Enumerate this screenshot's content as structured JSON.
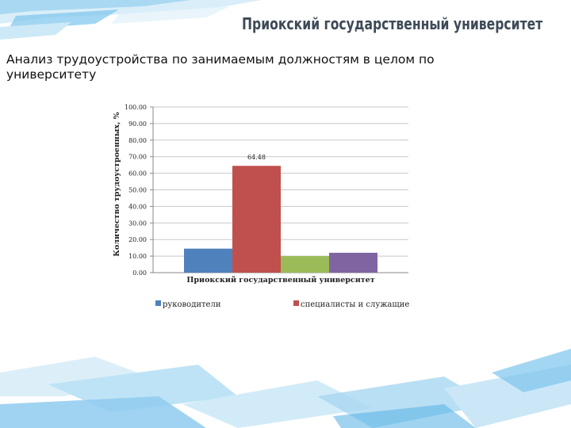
{
  "header": {
    "university": "Приокский государственный университет"
  },
  "slide": {
    "title": "Анализ трудоустройства по занимаемым должностям в целом по университету"
  },
  "chart_data": {
    "type": "bar",
    "categories": [
      "Приокский государственный университет"
    ],
    "series": [
      {
        "name": "руководители",
        "values": [
          14.5
        ],
        "color": "#4f81bd"
      },
      {
        "name": "специалисты и служащие",
        "values": [
          64.48
        ],
        "color": "#c0504d"
      },
      {
        "name": "",
        "values": [
          10.0
        ],
        "color": "#9bbb59"
      },
      {
        "name": "",
        "values": [
          12.0
        ],
        "color": "#8064a2"
      }
    ],
    "data_labels": [
      "",
      "64.48",
      "",
      ""
    ],
    "title": "",
    "xlabel": "",
    "ylabel": "Количество трудоустроенных, %",
    "ylim": [
      0,
      100
    ],
    "yticks": [
      "0.00",
      "10.00",
      "20.00",
      "30.00",
      "40.00",
      "50.00",
      "60.00",
      "70.00",
      "80.00",
      "90.00",
      "100.00"
    ],
    "grid": true,
    "legend": "bottom"
  }
}
